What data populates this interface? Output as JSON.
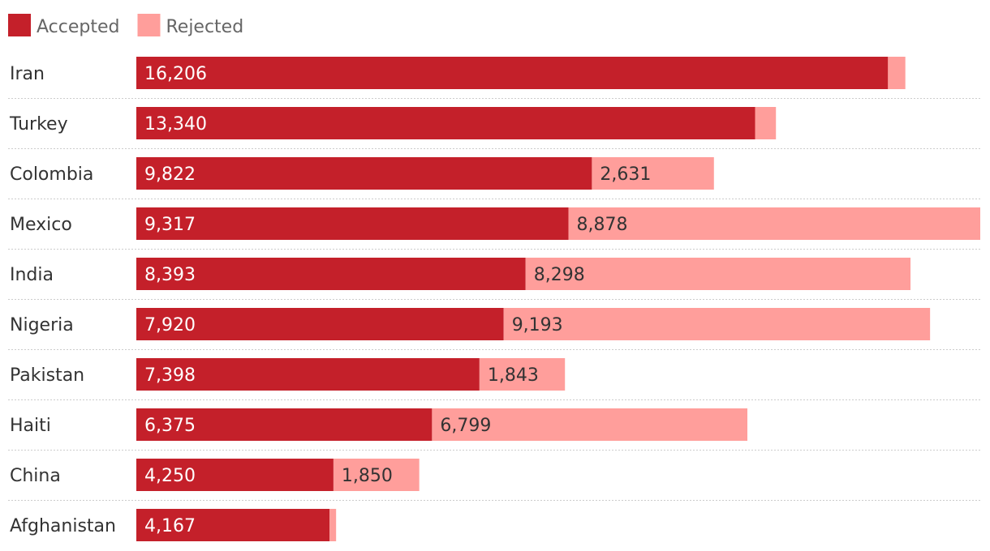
{
  "chart_data": {
    "type": "bar",
    "orientation": "horizontal",
    "stacked": true,
    "categories": [
      "Iran",
      "Turkey",
      "Colombia",
      "Mexico",
      "India",
      "Nigeria",
      "Pakistan",
      "Haiti",
      "China",
      "Afghanistan"
    ],
    "series": [
      {
        "name": "Accepted",
        "color": "#c4202a",
        "label_color": "#ffffff",
        "values": [
          16206,
          13340,
          9822,
          9317,
          8393,
          7920,
          7398,
          6375,
          4250,
          4167
        ],
        "labels": [
          "16,206",
          "13,340",
          "9,822",
          "9,317",
          "8,393",
          "7,920",
          "7,398",
          "6,375",
          "4,250",
          "4,167"
        ]
      },
      {
        "name": "Rejected",
        "color": "#ff9e9b",
        "label_color": "#333333",
        "values": [
          374,
          450,
          2631,
          8878,
          8298,
          9193,
          1843,
          6799,
          1850,
          140
        ],
        "labels": [
          "",
          "",
          "2,631",
          "8,878",
          "8,298",
          "9,193",
          "1,843",
          "6,799",
          "1,850",
          ""
        ]
      }
    ],
    "xlim": [
      0,
      18195
    ],
    "grid": false,
    "legend": "top-left",
    "title": "",
    "xlabel": "",
    "ylabel": ""
  }
}
